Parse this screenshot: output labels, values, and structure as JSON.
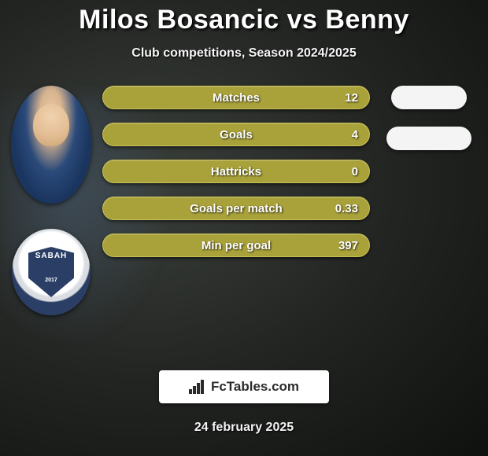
{
  "title": "Milos Bosancic vs Benny",
  "subtitle": "Club competitions, Season 2024/2025",
  "date": "24 february 2025",
  "brand": "FcTables.com",
  "player_badge_label": "SABAH",
  "player_badge_year": "2017",
  "colors": {
    "bar_fill": "#a9a23a",
    "bar_border": "#c8c15a",
    "pill_fill": "#f4f4f4",
    "text": "#ffffff"
  },
  "stats": [
    {
      "label": "Matches",
      "value": "12",
      "left_width": 340
    },
    {
      "label": "Goals",
      "value": "4",
      "left_width": 340
    },
    {
      "label": "Hattricks",
      "value": "0",
      "left_width": 340
    },
    {
      "label": "Goals per match",
      "value": "0.33",
      "left_width": 340
    },
    {
      "label": "Min per goal",
      "value": "397",
      "left_width": 340
    }
  ],
  "right_pills": [
    {
      "width": 96
    },
    {
      "width": 108
    }
  ],
  "typography": {
    "title_fontsize": 34,
    "subtitle_fontsize": 16,
    "stat_fontsize": 15,
    "date_fontsize": 16
  }
}
